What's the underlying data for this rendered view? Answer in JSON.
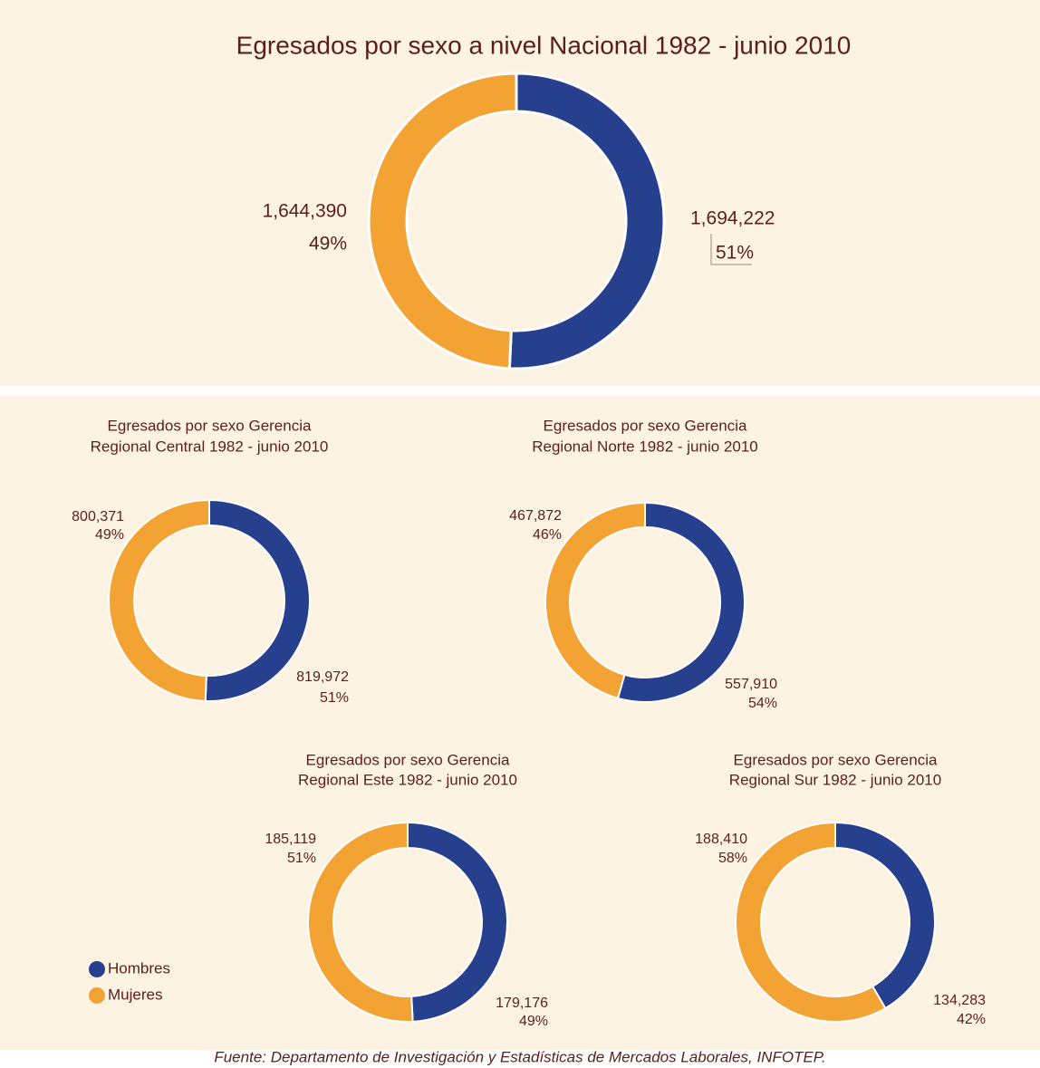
{
  "chart_data": [
    {
      "type": "pie",
      "title": [
        "Egresados por sexo a nivel Nacional 1982 - junio 2010"
      ],
      "categories": [
        "Hombres",
        "Mujeres"
      ],
      "colors": [
        "#27408e",
        "#f3a334"
      ],
      "values": [
        1694222,
        1644390
      ],
      "value_labels": [
        "1,694,222",
        "1,644,390"
      ],
      "percent_labels": [
        "51%",
        "49%"
      ]
    },
    {
      "type": "pie",
      "title": [
        "Egresados por sexo Gerencia",
        "Regional Central 1982 - junio 2010"
      ],
      "categories": [
        "Hombres",
        "Mujeres"
      ],
      "colors": [
        "#27408e",
        "#f3a334"
      ],
      "values": [
        819972,
        800371
      ],
      "value_labels": [
        "819,972",
        "800,371"
      ],
      "percent_labels": [
        "51%",
        "49%"
      ]
    },
    {
      "type": "pie",
      "title": [
        "Egresados por sexo Gerencia",
        "Regional Norte 1982 - junio 2010"
      ],
      "categories": [
        "Hombres",
        "Mujeres"
      ],
      "colors": [
        "#27408e",
        "#f3a334"
      ],
      "values": [
        557910,
        467872
      ],
      "value_labels": [
        "557,910",
        "467,872"
      ],
      "percent_labels": [
        "54%",
        "46%"
      ]
    },
    {
      "type": "pie",
      "title": [
        "Egresados por sexo Gerencia",
        "Regional Este 1982 - junio 2010"
      ],
      "categories": [
        "Hombres",
        "Mujeres"
      ],
      "colors": [
        "#27408e",
        "#f3a334"
      ],
      "values": [
        179176,
        185119
      ],
      "value_labels": [
        "179,176",
        "185,119"
      ],
      "percent_labels": [
        "49%",
        "51%"
      ]
    },
    {
      "type": "pie",
      "title": [
        "Egresados por sexo Gerencia",
        "Regional Sur 1982 - junio 2010"
      ],
      "categories": [
        "Hombres",
        "Mujeres"
      ],
      "colors": [
        "#27408e",
        "#f3a334"
      ],
      "values": [
        134283,
        188410
      ],
      "value_labels": [
        "134,283",
        "188,410"
      ],
      "percent_labels": [
        "42%",
        "58%"
      ]
    }
  ],
  "source": "Fuente: Departamento de Investigación y Estadísticas de Mercados Laborales, INFOTEP."
}
